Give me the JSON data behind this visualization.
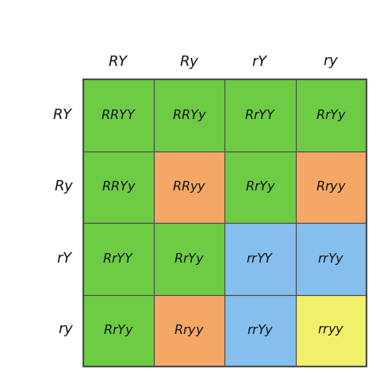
{
  "col_headers": [
    "RY",
    "Ry",
    "rY",
    "ry"
  ],
  "row_headers": [
    "RY",
    "Ry",
    "rY",
    "ry"
  ],
  "cells": [
    [
      "RRYY",
      "RRYy",
      "RrYY",
      "RrYy"
    ],
    [
      "RRYy",
      "RRyy",
      "RrYy",
      "Rryy"
    ],
    [
      "RrYY",
      "RrYy",
      "rrYY",
      "rrYy"
    ],
    [
      "RrYy",
      "Rryy",
      "rrYy",
      "rryy"
    ]
  ],
  "cell_colors": [
    [
      "#6dcc44",
      "#6dcc44",
      "#6dcc44",
      "#6dcc44"
    ],
    [
      "#6dcc44",
      "#f5a865",
      "#6dcc44",
      "#f5a865"
    ],
    [
      "#6dcc44",
      "#6dcc44",
      "#85bfed",
      "#85bfed"
    ],
    [
      "#6dcc44",
      "#f5a865",
      "#85bfed",
      "#f0f06a"
    ]
  ],
  "background_color": "#ffffff",
  "border_color": "#4a4a4a",
  "cell_fontsize": 11.5,
  "header_fontsize": 13,
  "fig_width": 4.74,
  "fig_height": 4.74,
  "dpi": 100
}
